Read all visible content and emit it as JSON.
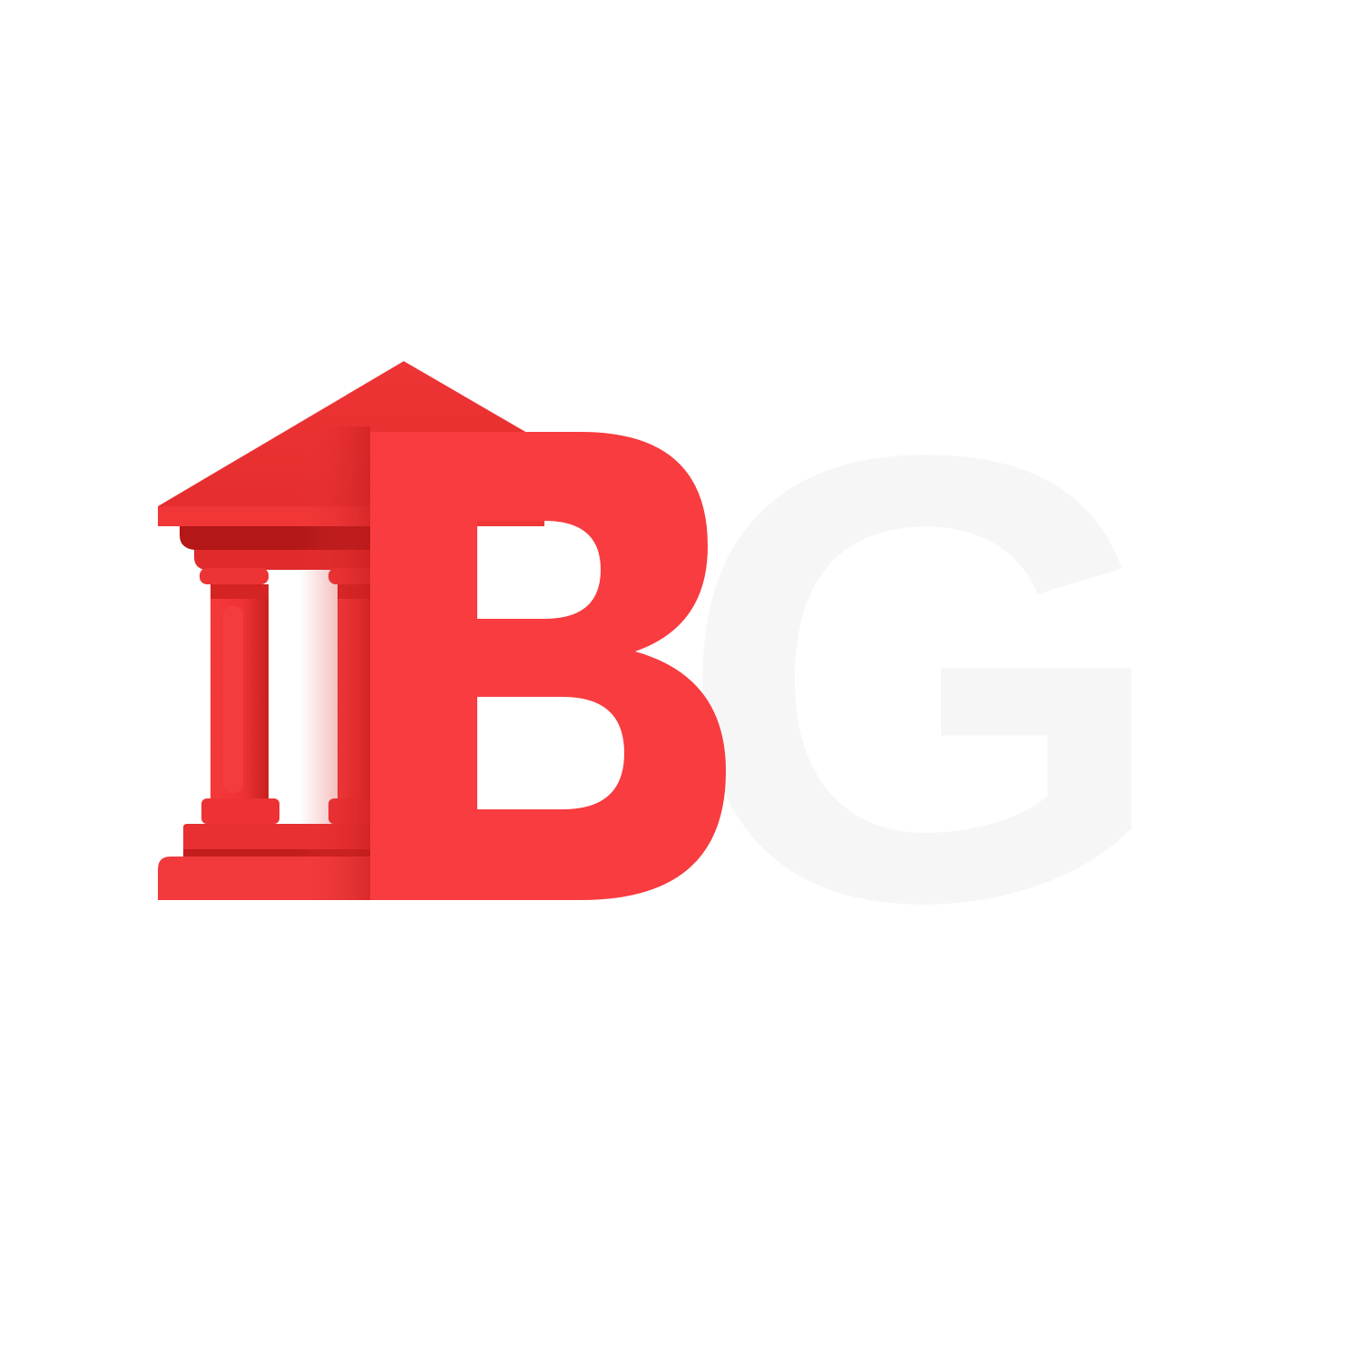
{
  "logo": {
    "letter_primary": "B",
    "letter_secondary": "G",
    "icon": "bank-building-icon",
    "colors": {
      "brand_red": "#f83c40",
      "red_light": "#f23a3c",
      "red_dark": "#b31717",
      "red_mid": "#d42222",
      "letter_secondary_color": "#f6f6f6",
      "background": "#ffffff"
    }
  }
}
